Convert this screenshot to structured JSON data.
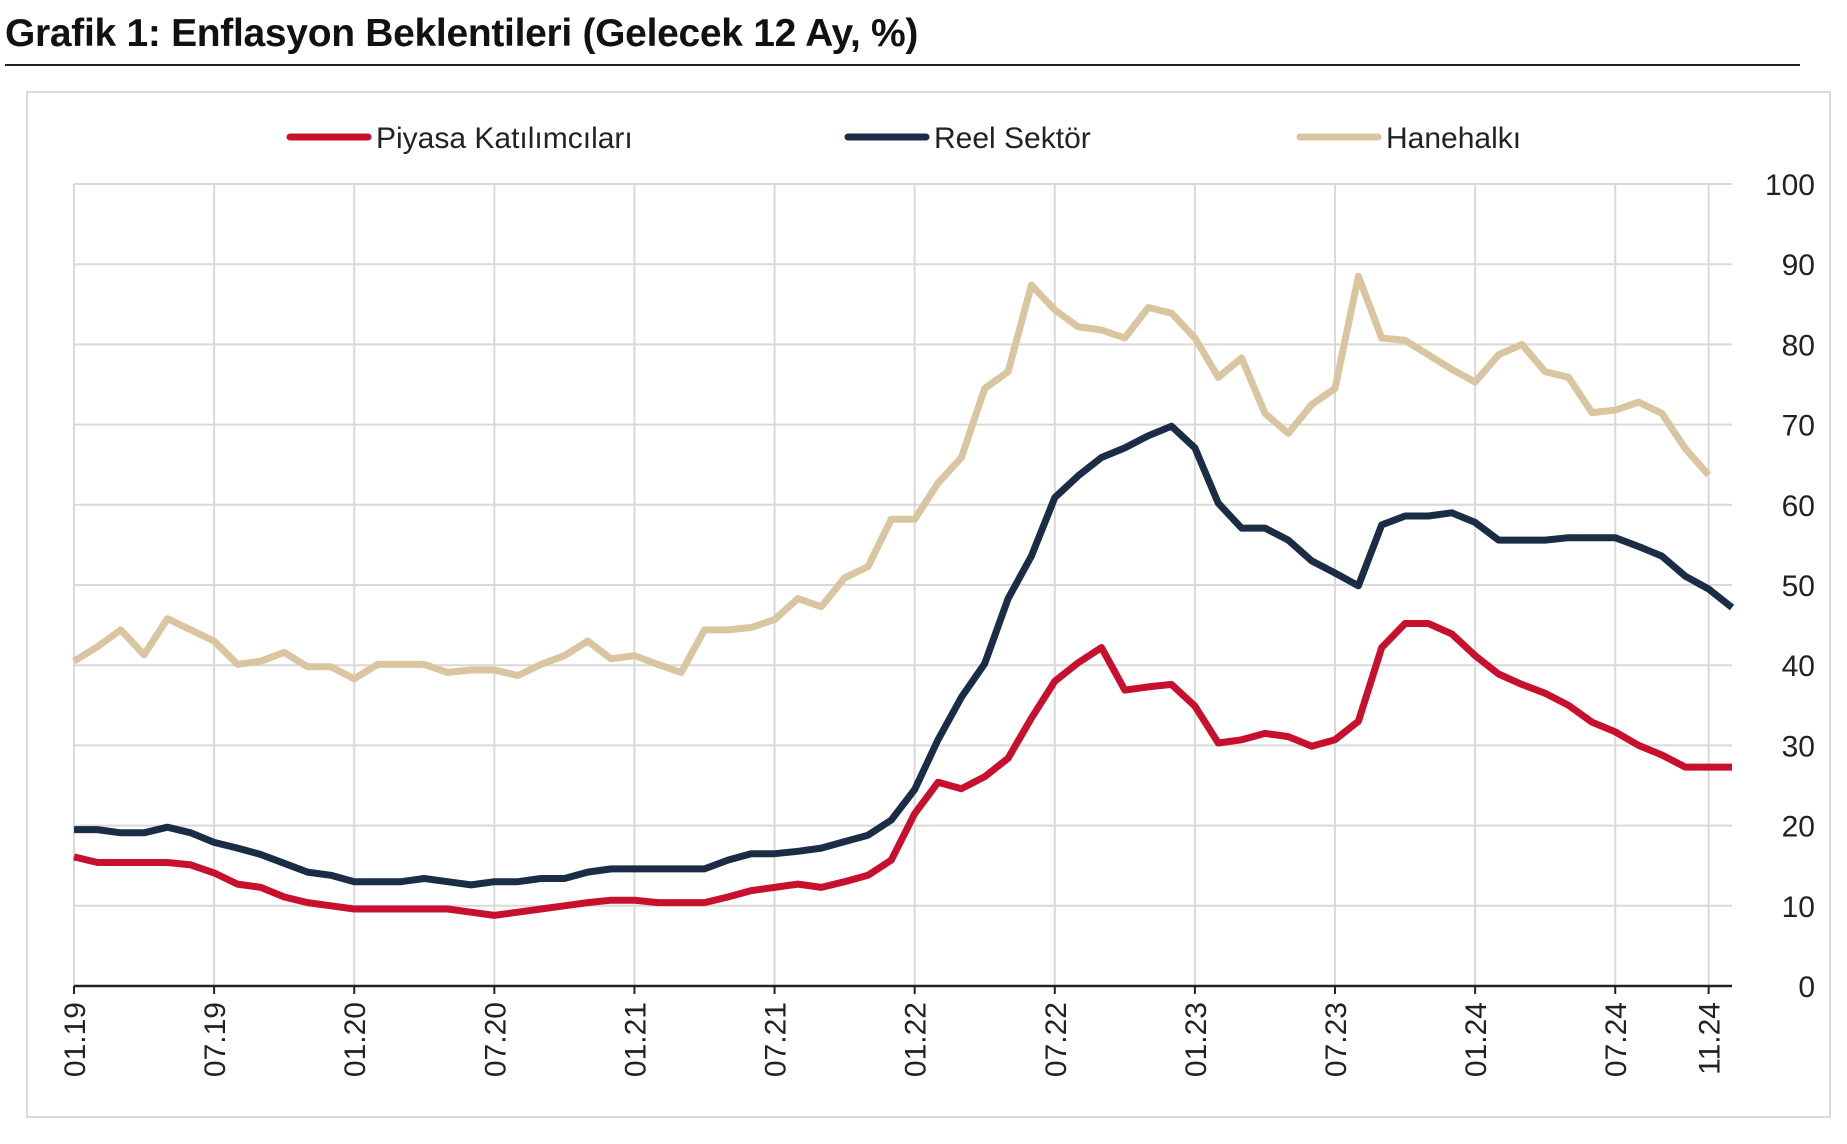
{
  "page": {
    "title": "Grafik 1: Enflasyon Beklentileri (Gelecek 12 Ay, %)"
  },
  "chart_data": {
    "type": "line",
    "legend_position": "top",
    "grid": true,
    "y_axis_side": "right",
    "ylim": [
      0,
      100
    ],
    "y_ticks": [
      0,
      10,
      20,
      30,
      40,
      50,
      60,
      70,
      80,
      90,
      100
    ],
    "x_tick_labels": [
      "01.19",
      "07.19",
      "01.20",
      "07.20",
      "01.21",
      "07.21",
      "01.22",
      "07.22",
      "01.23",
      "07.23",
      "01.24",
      "07.24",
      "11.24"
    ],
    "x_tick_index": [
      0,
      6,
      12,
      18,
      24,
      30,
      36,
      42,
      48,
      54,
      60,
      66,
      70
    ],
    "series": [
      {
        "name": "Piyasa Katılımcıları",
        "color": "#c8102e",
        "values": [
          16.1,
          15.4,
          15.4,
          15.4,
          15.4,
          15.1,
          14.1,
          12.7,
          12.3,
          11.1,
          10.4,
          10.0,
          9.6,
          9.6,
          9.6,
          9.6,
          9.6,
          9.2,
          8.8,
          9.2,
          9.6,
          10.0,
          10.4,
          10.7,
          10.7,
          10.4,
          10.4,
          10.4,
          11.1,
          11.9,
          12.3,
          12.7,
          12.3,
          13.0,
          13.8,
          15.7,
          21.5,
          25.4,
          24.6,
          26.1,
          28.4,
          33.4,
          38.0,
          40.3,
          42.2,
          36.9,
          37.3,
          37.6,
          34.9,
          30.3,
          30.7,
          31.5,
          31.1,
          29.9,
          30.7,
          33.0,
          42.2,
          45.2,
          45.2,
          43.9,
          41.2,
          38.9,
          37.6,
          36.5,
          35.0,
          32.9,
          31.7,
          30.0,
          28.8,
          27.3,
          27.3,
          27.3
        ]
      },
      {
        "name": "Reel Sektör",
        "color": "#1b2d45",
        "values": [
          19.5,
          19.5,
          19.1,
          19.1,
          19.8,
          19.1,
          17.9,
          17.2,
          16.4,
          15.3,
          14.2,
          13.8,
          13.0,
          13.0,
          13.0,
          13.4,
          13.0,
          12.6,
          13.0,
          13.0,
          13.4,
          13.4,
          14.2,
          14.6,
          14.6,
          14.6,
          14.6,
          14.6,
          15.7,
          16.5,
          16.5,
          16.8,
          17.2,
          18.0,
          18.8,
          20.7,
          24.5,
          30.7,
          36.0,
          40.2,
          48.3,
          53.6,
          60.9,
          63.6,
          65.9,
          67.1,
          68.6,
          69.8,
          67.1,
          60.2,
          57.1,
          57.1,
          55.6,
          53.0,
          51.5,
          49.9,
          57.5,
          58.6,
          58.6,
          59.0,
          57.8,
          55.6,
          55.6,
          55.6,
          55.9,
          55.9,
          55.9,
          54.8,
          53.6,
          51.1,
          49.5,
          47.2
        ]
      },
      {
        "name": "Hanehalkı",
        "color": "#d9c5a0",
        "values": [
          40.5,
          42.3,
          44.4,
          41.3,
          45.8,
          44.4,
          43.0,
          40.1,
          40.5,
          41.6,
          39.8,
          39.8,
          38.3,
          40.1,
          40.1,
          40.1,
          39.1,
          39.4,
          39.4,
          38.7,
          40.1,
          41.2,
          43.0,
          40.8,
          41.2,
          40.1,
          39.1,
          44.4,
          44.4,
          44.7,
          45.7,
          48.3,
          47.3,
          50.9,
          52.3,
          58.2,
          58.2,
          62.7,
          65.9,
          74.5,
          76.6,
          87.4,
          84.3,
          82.2,
          81.8,
          80.8,
          84.6,
          83.9,
          80.8,
          75.9,
          78.3,
          71.4,
          68.9,
          72.5,
          74.5,
          88.5,
          80.8,
          80.5,
          78.7,
          76.9,
          75.3,
          78.7,
          80.0,
          76.6,
          75.9,
          71.5,
          71.8,
          72.8,
          71.4,
          67.0,
          63.7
        ]
      }
    ]
  }
}
